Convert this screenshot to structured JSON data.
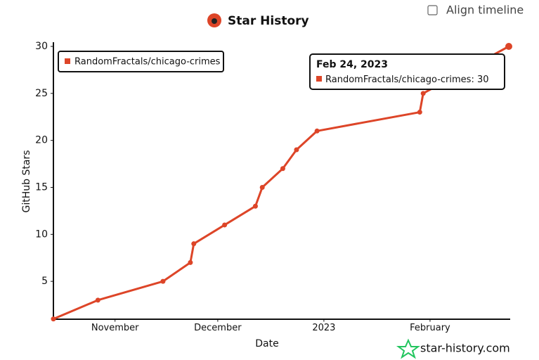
{
  "chart_data": {
    "type": "line",
    "title": "Star History",
    "x_label": "Date",
    "y_label": "GitHub Stars",
    "x": [
      "2022-10-14",
      "2022-10-27",
      "2022-11-15",
      "2022-11-23",
      "2022-11-24",
      "2022-12-03",
      "2022-12-12",
      "2022-12-14",
      "2022-12-20",
      "2022-12-24",
      "2022-12-30",
      "2023-01-29",
      "2023-01-30",
      "2023-02-24"
    ],
    "series": [
      {
        "name": "RandomFractals/chicago-crimes",
        "color": "#dd4528",
        "values": [
          1,
          3,
          5,
          7,
          9,
          11,
          13,
          15,
          17,
          19,
          21,
          23,
          25,
          30
        ]
      }
    ],
    "xlim": [
      "2022-10-14",
      "2023-02-24"
    ],
    "xticks": [
      {
        "value": "2022-11-01",
        "label": "November"
      },
      {
        "value": "2022-12-01",
        "label": "December"
      },
      {
        "value": "2023-01-01",
        "label": "2023"
      },
      {
        "value": "2023-02-01",
        "label": "February"
      }
    ],
    "ylim": [
      1,
      30
    ],
    "yticks": [
      5,
      10,
      15,
      20,
      25,
      30
    ],
    "grid": false,
    "legend": "top-left",
    "tooltip": {
      "title": "Feb 24, 2023"
    }
  },
  "controls": {
    "align_timeline": "Align timeline"
  },
  "watermark": "star-history.com"
}
